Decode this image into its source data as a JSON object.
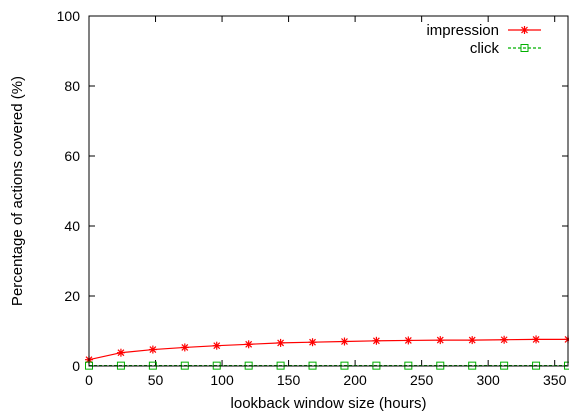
{
  "chart_data": {
    "type": "line",
    "title": "",
    "xlabel": "lookback window size (hours)",
    "ylabel": "Percentage of actions covered (%)",
    "xlim": [
      0,
      360
    ],
    "ylim": [
      0,
      100
    ],
    "xticks": [
      0,
      50,
      100,
      150,
      200,
      250,
      300,
      350
    ],
    "yticks": [
      0,
      20,
      40,
      60,
      80,
      100
    ],
    "legend": "top-right",
    "grid": false,
    "series": [
      {
        "name": "impression",
        "color": "#ff0000",
        "marker": "asterisk",
        "line": "solid",
        "x": [
          0,
          24,
          48,
          72,
          96,
          120,
          144,
          168,
          192,
          216,
          240,
          264,
          288,
          312,
          336,
          360
        ],
        "y": [
          1.8,
          3.8,
          4.7,
          5.3,
          5.8,
          6.2,
          6.6,
          6.8,
          7.0,
          7.2,
          7.3,
          7.4,
          7.4,
          7.5,
          7.6,
          7.6
        ]
      },
      {
        "name": "click",
        "color": "#00b000",
        "marker": "square",
        "line": "dashed",
        "x": [
          0,
          24,
          48,
          72,
          96,
          120,
          144,
          168,
          192,
          216,
          240,
          264,
          288,
          312,
          336,
          360
        ],
        "y": [
          0.1,
          0.1,
          0.1,
          0.1,
          0.1,
          0.1,
          0.1,
          0.1,
          0.1,
          0.1,
          0.1,
          0.1,
          0.1,
          0.1,
          0.1,
          0.1
        ]
      }
    ]
  }
}
